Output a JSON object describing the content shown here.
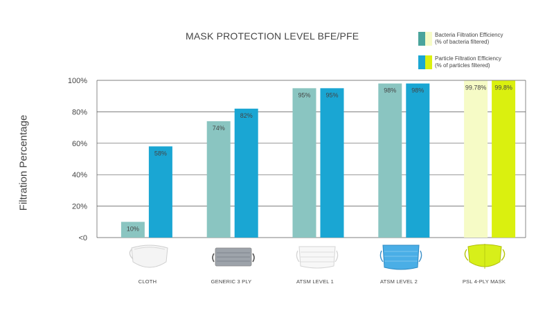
{
  "chart_data": {
    "type": "bar",
    "title": "MASK PROTECTION LEVEL BFE/PFE",
    "ylabel": "Filtration Percentage",
    "xlabel": "",
    "ylim": [
      0,
      100
    ],
    "yticks": [
      {
        "value": 0,
        "label": "<0"
      },
      {
        "value": 20,
        "label": "20%"
      },
      {
        "value": 40,
        "label": "40%"
      },
      {
        "value": 60,
        "label": "60%"
      },
      {
        "value": 80,
        "label": "80%"
      },
      {
        "value": 100,
        "label": "100%"
      }
    ],
    "grid": true,
    "legend_position": "top-right",
    "categories": [
      "CLOTH",
      "GENERIC 3 PLY",
      "ATSM LEVEL 1",
      "ATSM LEVEL 2",
      "PSL 4-PLY MASK"
    ],
    "series": [
      {
        "name": "Bacteria Filtration Efficiency",
        "name_line2": "(% of bacteria filtered)",
        "values": [
          10,
          74,
          95,
          98,
          99.78
        ],
        "labels": [
          "10%",
          "74%",
          "95%",
          "98%",
          "99.78%"
        ],
        "color": "#8ac5c1",
        "highlight_color": "#f6fbc6"
      },
      {
        "name": "Particle Filtration Efficiency",
        "name_line2": "(% of particles filtered)",
        "values": [
          58,
          82,
          95,
          98,
          99.8
        ],
        "labels": [
          "58%",
          "82%",
          "95%",
          "98%",
          "99.8%"
        ],
        "color": "#1aa6d3",
        "highlight_color": "#daf00f"
      }
    ],
    "legend_swatches": [
      {
        "left": "#4aa49c",
        "right": "#f6fbc6"
      },
      {
        "left": "#1aa6d3",
        "right": "#daf00f"
      }
    ],
    "icons": [
      "cloth-mask-icon",
      "generic-3ply-mask-icon",
      "astm-level-1-mask-icon",
      "astm-level-2-mask-icon",
      "psl-4ply-mask-icon"
    ]
  }
}
